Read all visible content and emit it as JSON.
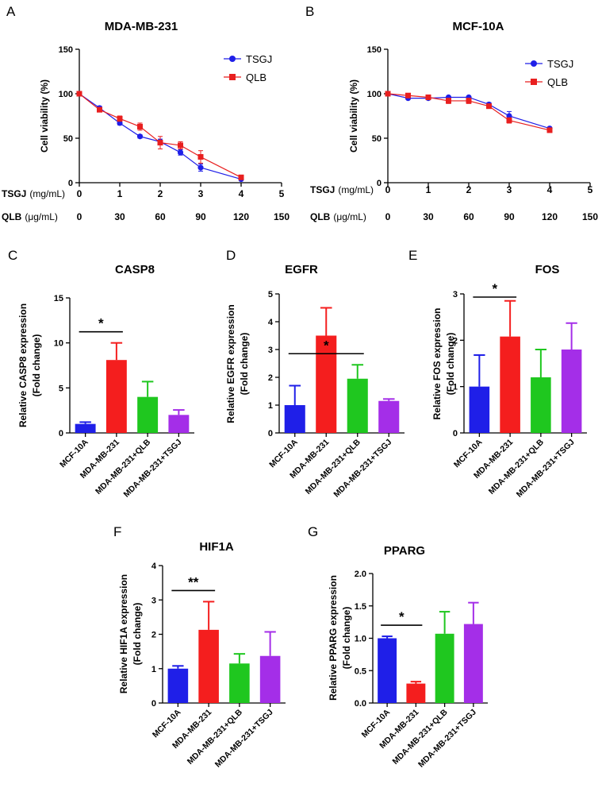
{
  "chart_data": [
    {
      "id": "A",
      "type": "line",
      "panel_label": "A",
      "title": "MDA-MB-231",
      "ylabel": "Cell viability (%)",
      "ylim": [
        0,
        150
      ],
      "yticks": [
        "0",
        "50",
        "100",
        "150"
      ],
      "x_rows": [
        {
          "name": "TSGJ",
          "unit": "(mg/mL)",
          "ticks": [
            "0",
            "1",
            "2",
            "3",
            "4",
            "5"
          ]
        },
        {
          "name": "QLB",
          "unit": "(μg/mL)",
          "ticks": [
            "0",
            "30",
            "60",
            "90",
            "120",
            "150"
          ]
        }
      ],
      "xlim": [
        0,
        5
      ],
      "legend": [
        "TSGJ",
        "QLB"
      ],
      "series": [
        {
          "name": "TSGJ",
          "color": "#1f1fe8",
          "marker": "circle",
          "x": [
            0,
            0.5,
            1,
            1.5,
            2,
            2.5,
            3,
            4
          ],
          "y": [
            100,
            84,
            67,
            52,
            46,
            34,
            17,
            4
          ],
          "err": [
            1,
            2,
            2,
            2,
            3,
            3,
            4,
            1
          ]
        },
        {
          "name": "QLB",
          "color": "#e81f1f",
          "marker": "square",
          "x": [
            0,
            0.5,
            1,
            1.5,
            2,
            2.5,
            3,
            4
          ],
          "y": [
            100,
            82,
            72,
            63,
            45,
            42,
            29,
            6
          ],
          "err": [
            1,
            2,
            3,
            4,
            7,
            4,
            7,
            1
          ]
        }
      ]
    },
    {
      "id": "B",
      "type": "line",
      "panel_label": "B",
      "title": "MCF-10A",
      "ylabel": "Cell viability (%)",
      "ylim": [
        0,
        150
      ],
      "yticks": [
        "0",
        "50",
        "100",
        "150"
      ],
      "x_rows": [
        {
          "name": "TSGJ",
          "unit": "(mg/mL)",
          "ticks": [
            "0",
            "1",
            "2",
            "3",
            "4",
            "5"
          ]
        },
        {
          "name": "QLB",
          "unit": "(μg/mL)",
          "ticks": [
            "0",
            "30",
            "60",
            "90",
            "120",
            "150"
          ]
        }
      ],
      "xlim": [
        0,
        5
      ],
      "legend": [
        "TSGJ",
        "QLB"
      ],
      "series": [
        {
          "name": "TSGJ",
          "color": "#1f1fe8",
          "marker": "circle",
          "x": [
            0,
            0.5,
            1,
            1.5,
            2,
            2.5,
            3,
            4
          ],
          "y": [
            100,
            95,
            95,
            96,
            96,
            88,
            75,
            61
          ],
          "err": [
            1,
            1,
            1,
            1,
            1,
            2,
            5,
            1
          ]
        },
        {
          "name": "QLB",
          "color": "#e81f1f",
          "marker": "square",
          "x": [
            0,
            0.5,
            1,
            1.5,
            2,
            2.5,
            3,
            4
          ],
          "y": [
            100,
            98,
            96,
            92,
            92,
            86,
            70,
            59
          ],
          "err": [
            1,
            1,
            1,
            3,
            3,
            2,
            3,
            1
          ]
        }
      ]
    },
    {
      "id": "C",
      "type": "bar",
      "panel_label": "C",
      "title": "CASP8",
      "ylabel": [
        "Relative CASP8 expression",
        "(Fold change)"
      ],
      "ylim": [
        0,
        15
      ],
      "yticks": [
        "0",
        "5",
        "10",
        "15"
      ],
      "categories": [
        "MCF-10A",
        "MDA-MB-231",
        "MDA-MB-231+QLB",
        "MDA-MB-231+TSGJ"
      ],
      "values": [
        1.0,
        8.1,
        4.0,
        2.0
      ],
      "errors": [
        0.2,
        1.9,
        1.7,
        0.55
      ],
      "colors": [
        "#1f1fe8",
        "#f41e1e",
        "#1fc71f",
        "#a42ee8"
      ],
      "significance": {
        "from": 0,
        "to": 1,
        "label": "*"
      }
    },
    {
      "id": "D",
      "type": "bar",
      "panel_label": "D",
      "title": "EGFR",
      "ylabel": [
        "Relative EGFR expression",
        "(Fold change)"
      ],
      "ylim": [
        0,
        5
      ],
      "yticks": [
        "0",
        "1",
        "2",
        "3",
        "4",
        "5"
      ],
      "categories": [
        "MCF-10A",
        "MDA-MB-231",
        "MDA-MB-231+QLB",
        "MDA-MB-231+TSGJ"
      ],
      "values": [
        1.0,
        3.5,
        1.95,
        1.15
      ],
      "errors": [
        0.7,
        1.0,
        0.5,
        0.07
      ],
      "colors": [
        "#1f1fe8",
        "#f41e1e",
        "#1fc71f",
        "#a42ee8"
      ],
      "significance": {
        "from": 0,
        "to": 2,
        "label": "*"
      }
    },
    {
      "id": "E",
      "type": "bar",
      "panel_label": "E",
      "title": "FOS",
      "ylabel": [
        "Relative FOS expression",
        "(Fold change)"
      ],
      "ylim": [
        0,
        3
      ],
      "yticks": [
        "0",
        "1",
        "2",
        "3"
      ],
      "categories": [
        "MCF-10A",
        "MDA-MB-231",
        "MDA-MB-231+QLB",
        "MDA-MB-231+TSGJ"
      ],
      "values": [
        1.0,
        2.08,
        1.2,
        1.8
      ],
      "errors": [
        0.68,
        0.77,
        0.6,
        0.57
      ],
      "colors": [
        "#1f1fe8",
        "#f41e1e",
        "#1fc71f",
        "#a42ee8"
      ],
      "significance": {
        "from": 0,
        "to": 1,
        "label": "*"
      }
    },
    {
      "id": "F",
      "type": "bar",
      "panel_label": "F",
      "title": "HIF1A",
      "ylabel": [
        "Relative HIF1A expression",
        "(Fold change)"
      ],
      "ylim": [
        0,
        4
      ],
      "yticks": [
        "0",
        "1",
        "2",
        "3",
        "4"
      ],
      "categories": [
        "MCF-10A",
        "MDA-MB-231",
        "MDA-MB-231+QLB",
        "MDA-MB-231+TSGJ"
      ],
      "values": [
        1.0,
        2.13,
        1.15,
        1.37
      ],
      "errors": [
        0.08,
        0.82,
        0.28,
        0.7
      ],
      "colors": [
        "#1f1fe8",
        "#f41e1e",
        "#1fc71f",
        "#a42ee8"
      ],
      "significance": {
        "from": 0,
        "to": 1,
        "label": "**"
      }
    },
    {
      "id": "G",
      "type": "bar",
      "panel_label": "G",
      "title": "PPARG",
      "ylabel": [
        "Relative PPARG expression",
        "(Fold change)"
      ],
      "ylim": [
        0,
        2.0
      ],
      "yticks": [
        "0.0",
        "0.5",
        "1.0",
        "1.5",
        "2.0"
      ],
      "categories": [
        "MCF-10A",
        "MDA-MB-231",
        "MDA-MB-231+QLB",
        "MDA-MB-231+TSGJ"
      ],
      "values": [
        1.0,
        0.3,
        1.07,
        1.22
      ],
      "errors": [
        0.03,
        0.03,
        0.34,
        0.33
      ],
      "colors": [
        "#1f1fe8",
        "#f41e1e",
        "#1fc71f",
        "#a42ee8"
      ],
      "significance": {
        "from": 0,
        "to": 1,
        "label": "*"
      }
    }
  ]
}
